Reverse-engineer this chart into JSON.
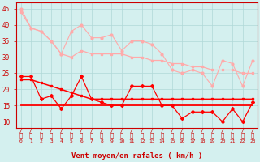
{
  "x": [
    0,
    1,
    2,
    3,
    4,
    5,
    6,
    7,
    8,
    9,
    10,
    11,
    12,
    13,
    14,
    15,
    16,
    17,
    18,
    19,
    20,
    21,
    22,
    23
  ],
  "line_max_gust_raw": [
    45,
    39,
    38,
    35,
    31,
    38,
    40,
    36,
    36,
    37,
    32,
    35,
    35,
    34,
    31,
    26,
    25,
    26,
    25,
    21,
    29,
    28,
    21,
    29
  ],
  "line_max_gust_smooth": [
    44,
    39,
    38,
    35,
    31,
    30,
    32,
    31,
    31,
    31,
    31,
    30,
    30,
    29,
    29,
    28,
    28,
    27,
    27,
    26,
    26,
    26,
    25,
    25
  ],
  "line_mean_wind_raw": [
    24,
    24,
    17,
    18,
    14,
    18,
    24,
    17,
    16,
    15,
    15,
    21,
    21,
    21,
    15,
    15,
    11,
    13,
    13,
    13,
    10,
    14,
    10,
    16
  ],
  "line_mean_wind_smooth": [
    23,
    23,
    22,
    21,
    20,
    19,
    18,
    17,
    17,
    17,
    17,
    17,
    17,
    17,
    17,
    17,
    17,
    17,
    17,
    17,
    17,
    17,
    17,
    17
  ],
  "line_min_wind": [
    15,
    15,
    15,
    15,
    15,
    15,
    15,
    15,
    15,
    15,
    15,
    15,
    15,
    15,
    15,
    15,
    15,
    15,
    15,
    15,
    15,
    15,
    15,
    15
  ],
  "color_light_pink": "#ffaaaa",
  "color_red": "#ff0000",
  "color_dark_red": "#cc0000",
  "background_color": "#d4f0ef",
  "grid_color": "#b0d8d8",
  "xlabel": "Vent moyen/en rafales ( km/h )",
  "ylabel_ticks": [
    10,
    15,
    20,
    25,
    30,
    35,
    40,
    45
  ],
  "ylim": [
    8,
    47
  ],
  "xlim": [
    -0.5,
    23.5
  ]
}
